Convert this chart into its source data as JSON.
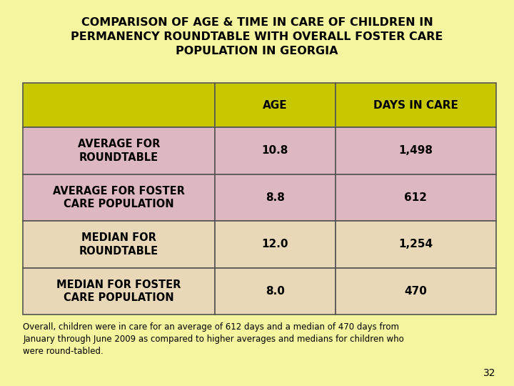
{
  "title": "COMPARISON OF AGE & TIME IN CARE OF CHILDREN IN\nPERMANENCY ROUNDTABLE WITH OVERALL FOSTER CARE\nPOPULATION IN GEORGIA",
  "background_color": "#f5f5a0",
  "header_bg": "#c8c800",
  "row1_bg": "#ddb8c0",
  "row2_bg": "#ddb8c0",
  "row3_bg": "#e8d8b8",
  "row4_bg": "#e8d8b8",
  "border_color": "#555555",
  "col_headers": [
    "AGE",
    "DAYS IN CARE"
  ],
  "rows": [
    {
      "label": "AVERAGE FOR\nROUNDTABLE",
      "age": "10.8",
      "days": "1,498"
    },
    {
      "label": "AVERAGE FOR FOSTER\nCARE POPULATION",
      "age": "8.8",
      "days": "612"
    },
    {
      "label": "MEDIAN FOR\nROUNDTABLE",
      "age": "12.0",
      "days": "1,254"
    },
    {
      "label": "MEDIAN FOR FOSTER\nCARE POPULATION",
      "age": "8.0",
      "days": "470"
    }
  ],
  "footnote": "Overall, children were in care for an average of 612 days and a median of 470 days from\nJanuary through June 2009 as compared to higher averages and medians for children who\nwere round-tabled.",
  "page_number": "32",
  "title_fontsize": 11.5,
  "header_fontsize": 11,
  "cell_fontsize": 11,
  "label_fontsize": 10.5,
  "footnote_fontsize": 8.5
}
